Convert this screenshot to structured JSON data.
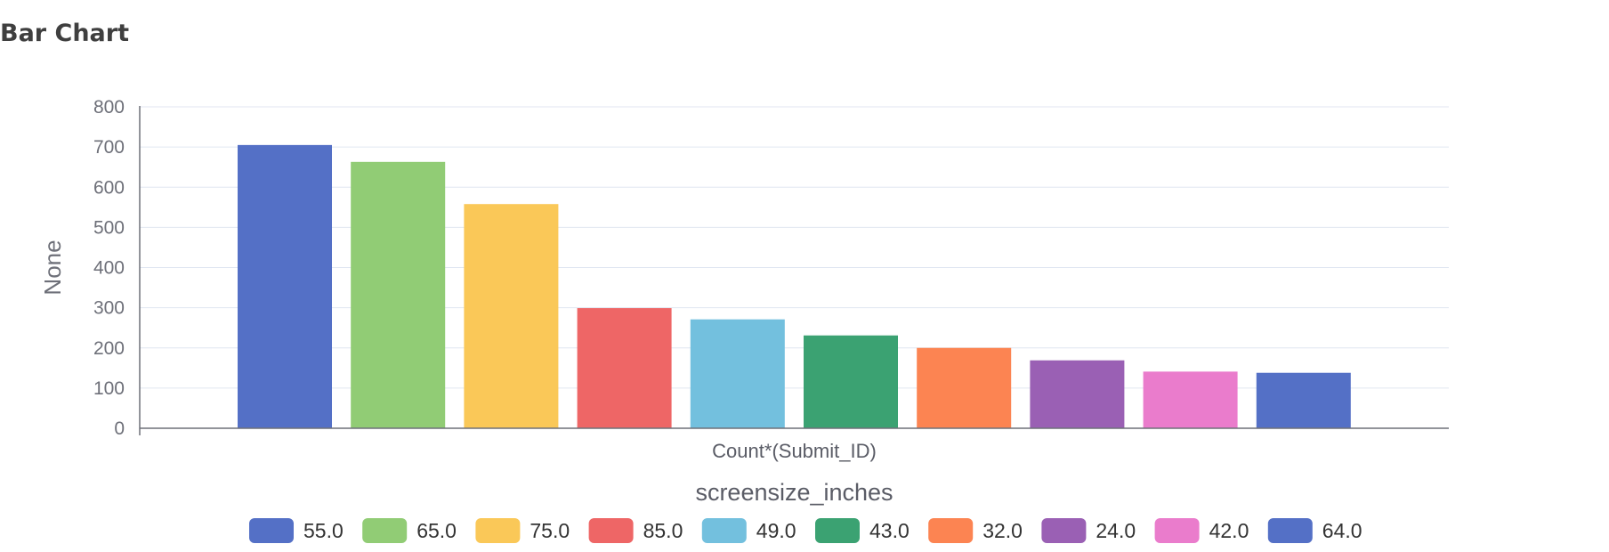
{
  "chart_data": {
    "type": "bar",
    "title": "Bar Chart",
    "xlabel": "Count*(Submit_ID)",
    "ylabel": "None",
    "ylim": [
      0,
      800
    ],
    "yticks": [
      0,
      100,
      200,
      300,
      400,
      500,
      600,
      700,
      800
    ],
    "grid": true,
    "legend": {
      "title": "screensize_inches",
      "position": "bottom"
    },
    "series": [
      {
        "name": "55.0",
        "value": 705,
        "color": "#5470c6"
      },
      {
        "name": "65.0",
        "value": 663,
        "color": "#91cc75"
      },
      {
        "name": "75.0",
        "value": 558,
        "color": "#fac858"
      },
      {
        "name": "85.0",
        "value": 299,
        "color": "#ee6666"
      },
      {
        "name": "49.0",
        "value": 271,
        "color": "#73c0de"
      },
      {
        "name": "43.0",
        "value": 231,
        "color": "#3ba272"
      },
      {
        "name": "32.0",
        "value": 200,
        "color": "#fc8452"
      },
      {
        "name": "24.0",
        "value": 169,
        "color": "#9a60b4"
      },
      {
        "name": "42.0",
        "value": 141,
        "color": "#ea7ccc"
      },
      {
        "name": "64.0",
        "value": 138,
        "color": "#5470c6"
      }
    ]
  }
}
